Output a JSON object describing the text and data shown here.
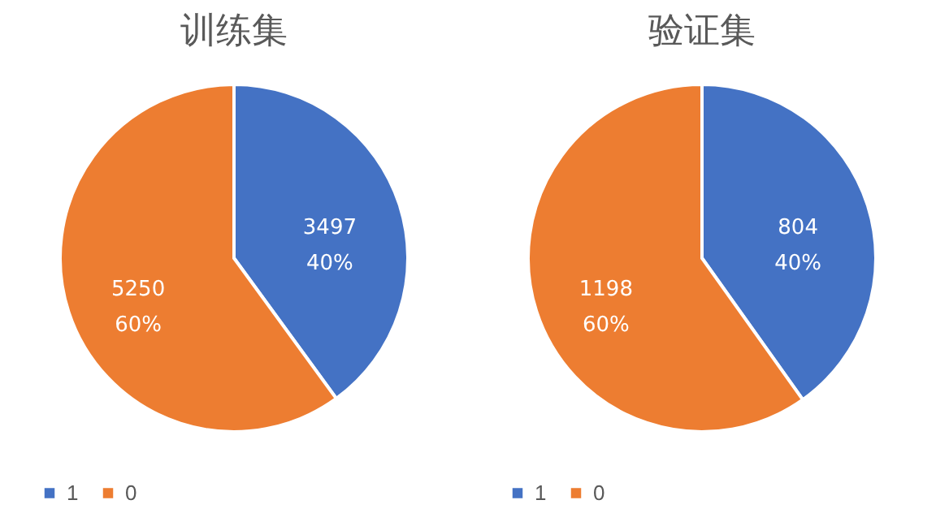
{
  "chart_data": [
    {
      "type": "pie",
      "title": "训练集",
      "categories": [
        "1",
        "0"
      ],
      "values": [
        3497,
        5250
      ],
      "colors": [
        "#4472c4",
        "#ed7d31"
      ],
      "value_labels": [
        "3497\n40%",
        "5250\n60%"
      ],
      "legend": "bottom"
    },
    {
      "type": "pie",
      "title": "验证集",
      "categories": [
        "1",
        "0"
      ],
      "values": [
        804,
        1198
      ],
      "colors": [
        "#4472c4",
        "#ed7d31"
      ],
      "value_labels": [
        "804\n40%",
        "1198\n60%"
      ],
      "legend": "bottom"
    }
  ]
}
